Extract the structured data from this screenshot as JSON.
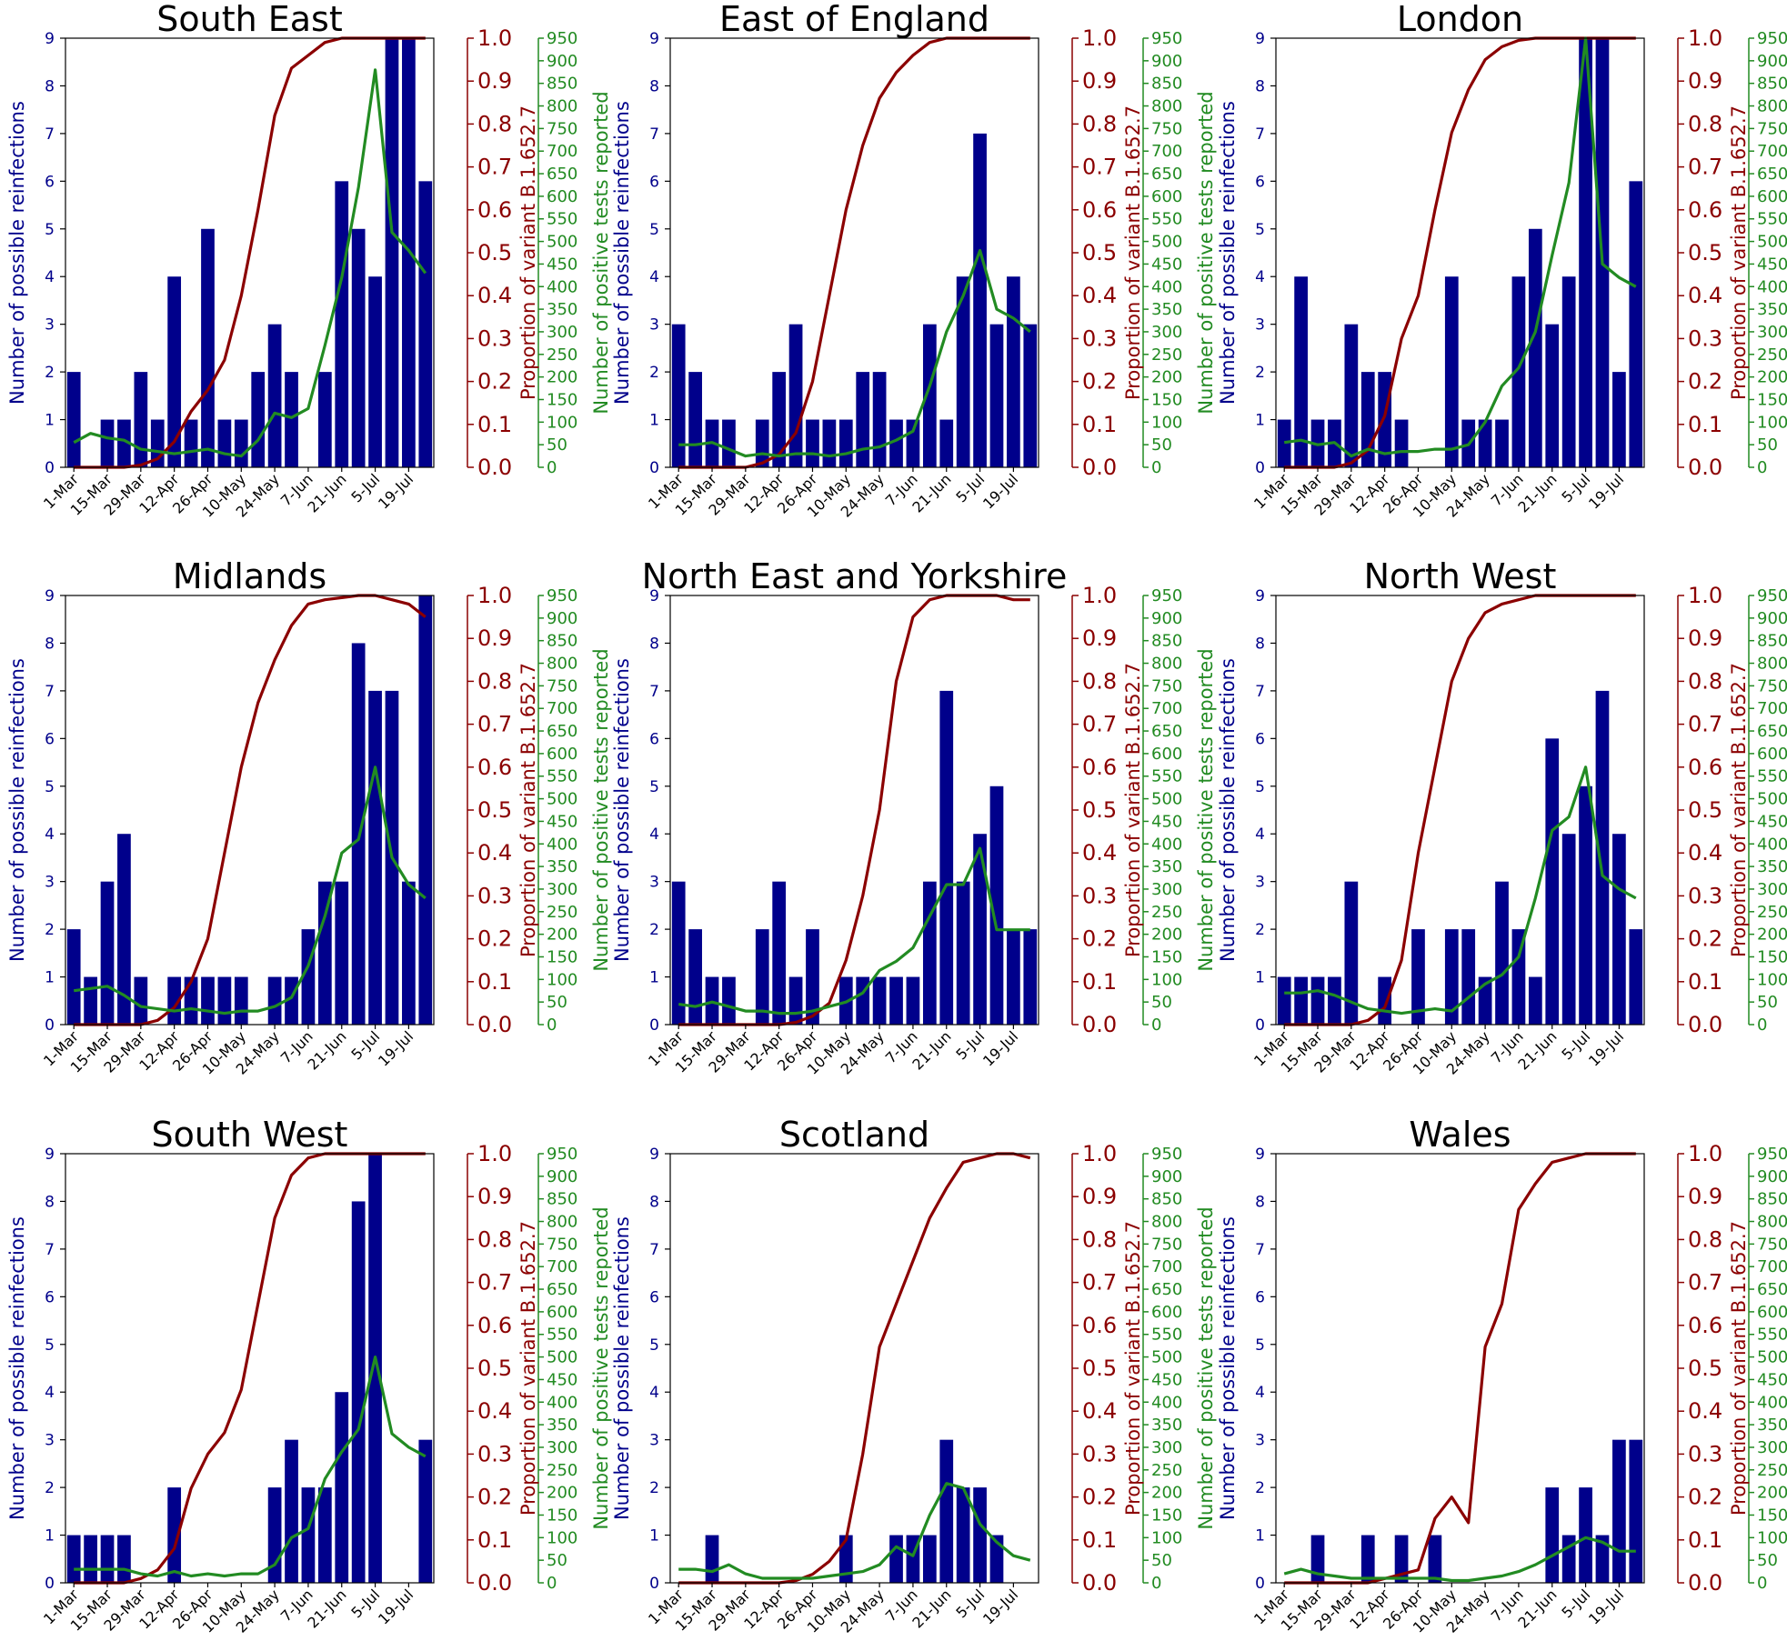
{
  "colors": {
    "bars": "#00008b",
    "variant": "#8b0000",
    "tests": "#228b22",
    "frame": "#000000"
  },
  "shared": {
    "xlabels": [
      "1-Mar",
      "15-Mar",
      "29-Mar",
      "12-Apr",
      "26-Apr",
      "10-May",
      "24-May",
      "7-Jun",
      "21-Jun",
      "5-Jul",
      "19-Jul"
    ],
    "left_ticks": [
      "0",
      "1",
      "2",
      "3",
      "4",
      "5",
      "6",
      "7",
      "8",
      "9"
    ],
    "mid_ticks": [
      "0.0",
      "0.1",
      "0.2",
      "0.3",
      "0.4",
      "0.5",
      "0.6",
      "0.7",
      "0.8",
      "0.9",
      "1.0"
    ],
    "right_ticks": [
      "0",
      "50",
      "100",
      "150",
      "200",
      "250",
      "300",
      "350",
      "400",
      "450",
      "500",
      "550",
      "600",
      "650",
      "700",
      "750",
      "800",
      "850",
      "900",
      "950"
    ],
    "left_label": "Number of possible reinfections",
    "mid_label": "Proportion of variant B.1.652.7",
    "right_label": "Number of positive tests reported"
  },
  "chart_data": [
    {
      "type": "bar",
      "title": "South East",
      "weeks": 22,
      "reinfections": [
        2,
        0,
        1,
        1,
        2,
        1,
        4,
        1,
        5,
        1,
        1,
        2,
        3,
        2,
        0,
        2,
        6,
        5,
        4,
        9,
        9,
        6
      ],
      "variant_proportion": [
        0,
        0,
        0,
        0,
        0.005,
        0.02,
        0.06,
        0.13,
        0.18,
        0.25,
        0.4,
        0.6,
        0.82,
        0.93,
        0.96,
        0.99,
        1.0,
        1.0,
        1.0,
        1.0,
        1.0,
        1.0
      ],
      "positive_tests": [
        55,
        75,
        65,
        60,
        40,
        35,
        30,
        35,
        40,
        30,
        25,
        60,
        120,
        110,
        130,
        270,
        420,
        620,
        880,
        520,
        480,
        430
      ],
      "ylim_left": [
        0,
        9
      ],
      "ylim_mid": [
        0,
        1
      ],
      "ylim_right": [
        0,
        950
      ]
    },
    {
      "type": "bar",
      "title": "East of England",
      "weeks": 22,
      "reinfections": [
        3,
        2,
        1,
        1,
        0,
        1,
        2,
        3,
        1,
        1,
        1,
        2,
        2,
        1,
        1,
        3,
        1,
        4,
        7,
        3,
        4,
        3
      ],
      "variant_proportion": [
        0,
        0,
        0,
        0,
        0,
        0.01,
        0.03,
        0.08,
        0.2,
        0.4,
        0.6,
        0.75,
        0.86,
        0.92,
        0.96,
        0.99,
        1.0,
        1.0,
        1.0,
        1.0,
        1.0,
        1.0
      ],
      "positive_tests": [
        50,
        50,
        55,
        40,
        25,
        30,
        25,
        30,
        30,
        25,
        30,
        40,
        45,
        60,
        80,
        180,
        300,
        380,
        480,
        350,
        330,
        300
      ],
      "ylim_left": [
        0,
        9
      ],
      "ylim_mid": [
        0,
        1
      ],
      "ylim_right": [
        0,
        950
      ]
    },
    {
      "type": "bar",
      "title": "London",
      "weeks": 22,
      "reinfections": [
        1,
        4,
        1,
        1,
        3,
        2,
        2,
        1,
        0,
        0,
        4,
        1,
        1,
        1,
        4,
        5,
        3,
        4,
        9,
        9,
        2,
        6
      ],
      "variant_proportion": [
        0,
        0,
        0,
        0,
        0.01,
        0.04,
        0.12,
        0.3,
        0.4,
        0.6,
        0.78,
        0.88,
        0.95,
        0.98,
        0.995,
        1.0,
        1.0,
        1.0,
        1.0,
        1.0,
        1.0,
        1.0
      ],
      "positive_tests": [
        55,
        60,
        50,
        55,
        25,
        40,
        30,
        35,
        35,
        40,
        40,
        50,
        100,
        180,
        220,
        300,
        470,
        630,
        950,
        450,
        420,
        400
      ],
      "ylim_left": [
        0,
        9
      ],
      "ylim_mid": [
        0,
        1
      ],
      "ylim_right": [
        0,
        950
      ]
    },
    {
      "type": "bar",
      "title": "Midlands",
      "weeks": 22,
      "reinfections": [
        2,
        1,
        3,
        4,
        1,
        0,
        1,
        1,
        1,
        1,
        1,
        0,
        1,
        1,
        2,
        3,
        3,
        8,
        7,
        7,
        3,
        9
      ],
      "variant_proportion": [
        0,
        0,
        0,
        0,
        0,
        0.01,
        0.04,
        0.1,
        0.2,
        0.4,
        0.6,
        0.75,
        0.85,
        0.93,
        0.98,
        0.99,
        0.995,
        1.0,
        1.0,
        0.99,
        0.98,
        0.95
      ],
      "positive_tests": [
        75,
        80,
        85,
        65,
        40,
        35,
        30,
        35,
        30,
        25,
        30,
        30,
        40,
        60,
        130,
        240,
        380,
        410,
        570,
        370,
        310,
        280
      ],
      "ylim_left": [
        0,
        9
      ],
      "ylim_mid": [
        0,
        1
      ],
      "ylim_right": [
        0,
        950
      ]
    },
    {
      "type": "bar",
      "title": "North East and Yorkshire",
      "weeks": 22,
      "reinfections": [
        3,
        2,
        1,
        1,
        0,
        2,
        3,
        1,
        2,
        0,
        1,
        1,
        1,
        1,
        1,
        3,
        7,
        3,
        4,
        5,
        2,
        2
      ],
      "variant_proportion": [
        0,
        0,
        0,
        0,
        0,
        0,
        0,
        0.005,
        0.02,
        0.05,
        0.15,
        0.3,
        0.5,
        0.8,
        0.95,
        0.99,
        1.0,
        1.0,
        1.0,
        1.0,
        0.99,
        0.99
      ],
      "positive_tests": [
        45,
        40,
        50,
        40,
        30,
        30,
        25,
        25,
        30,
        40,
        50,
        70,
        120,
        140,
        170,
        240,
        310,
        310,
        390,
        210,
        210,
        210
      ],
      "ylim_left": [
        0,
        9
      ],
      "ylim_mid": [
        0,
        1
      ],
      "ylim_right": [
        0,
        950
      ]
    },
    {
      "type": "bar",
      "title": "North West",
      "weeks": 22,
      "reinfections": [
        1,
        1,
        1,
        1,
        3,
        0,
        1,
        0,
        2,
        0,
        2,
        2,
        1,
        3,
        2,
        1,
        6,
        4,
        5,
        7,
        4,
        2
      ],
      "variant_proportion": [
        0,
        0,
        0,
        0,
        0,
        0.01,
        0.04,
        0.15,
        0.4,
        0.6,
        0.8,
        0.9,
        0.96,
        0.98,
        0.99,
        1.0,
        1.0,
        1.0,
        1.0,
        1.0,
        1.0,
        1.0
      ],
      "positive_tests": [
        70,
        70,
        75,
        65,
        50,
        35,
        30,
        25,
        30,
        35,
        30,
        60,
        90,
        110,
        150,
        280,
        430,
        460,
        570,
        330,
        300,
        280
      ],
      "ylim_left": [
        0,
        9
      ],
      "ylim_mid": [
        0,
        1
      ],
      "ylim_right": [
        0,
        950
      ]
    },
    {
      "type": "bar",
      "title": "South West",
      "weeks": 22,
      "reinfections": [
        1,
        1,
        1,
        1,
        0,
        0,
        2,
        0,
        0,
        0,
        0,
        0,
        2,
        3,
        2,
        2,
        4,
        8,
        9,
        0,
        0,
        3
      ],
      "variant_proportion": [
        0,
        0,
        0,
        0,
        0.01,
        0.03,
        0.08,
        0.22,
        0.3,
        0.35,
        0.45,
        0.65,
        0.85,
        0.95,
        0.99,
        1.0,
        1.0,
        1.0,
        1.0,
        1.0,
        1.0,
        1.0
      ],
      "positive_tests": [
        30,
        30,
        30,
        30,
        20,
        15,
        25,
        15,
        20,
        15,
        20,
        20,
        40,
        100,
        120,
        230,
        290,
        340,
        500,
        330,
        300,
        280
      ],
      "ylim_left": [
        0,
        9
      ],
      "ylim_mid": [
        0,
        1
      ],
      "ylim_right": [
        0,
        950
      ]
    },
    {
      "type": "bar",
      "title": "Scotland",
      "weeks": 22,
      "reinfections": [
        0,
        0,
        1,
        0,
        0,
        0,
        0,
        0,
        0,
        0,
        1,
        0,
        0,
        1,
        1,
        1,
        3,
        2,
        2,
        1,
        0,
        0
      ],
      "variant_proportion": [
        0,
        0,
        0,
        0,
        0,
        0,
        0,
        0.005,
        0.02,
        0.05,
        0.1,
        0.3,
        0.55,
        0.65,
        0.75,
        0.85,
        0.92,
        0.98,
        0.99,
        1.0,
        1.0,
        0.99
      ],
      "positive_tests": [
        30,
        30,
        25,
        40,
        20,
        10,
        10,
        10,
        10,
        15,
        20,
        25,
        40,
        80,
        60,
        150,
        220,
        210,
        130,
        90,
        60,
        50
      ],
      "ylim_left": [
        0,
        9
      ],
      "ylim_mid": [
        0,
        1
      ],
      "ylim_right": [
        0,
        950
      ]
    },
    {
      "type": "bar",
      "title": "Wales",
      "weeks": 22,
      "reinfections": [
        0,
        0,
        1,
        0,
        0,
        1,
        0,
        1,
        0,
        1,
        0,
        0,
        0,
        0,
        0,
        0,
        2,
        1,
        2,
        1,
        3,
        3
      ],
      "variant_proportion": [
        0,
        0,
        0,
        0,
        0,
        0,
        0.01,
        0.02,
        0.03,
        0.15,
        0.2,
        0.14,
        0.55,
        0.65,
        0.87,
        0.93,
        0.98,
        0.99,
        1.0,
        1.0,
        1.0,
        1.0
      ],
      "positive_tests": [
        20,
        30,
        20,
        15,
        10,
        10,
        10,
        10,
        10,
        10,
        5,
        5,
        10,
        15,
        25,
        40,
        60,
        80,
        100,
        90,
        70,
        70
      ],
      "ylim_left": [
        0,
        9
      ],
      "ylim_mid": [
        0,
        1
      ],
      "ylim_right": [
        0,
        950
      ]
    }
  ]
}
